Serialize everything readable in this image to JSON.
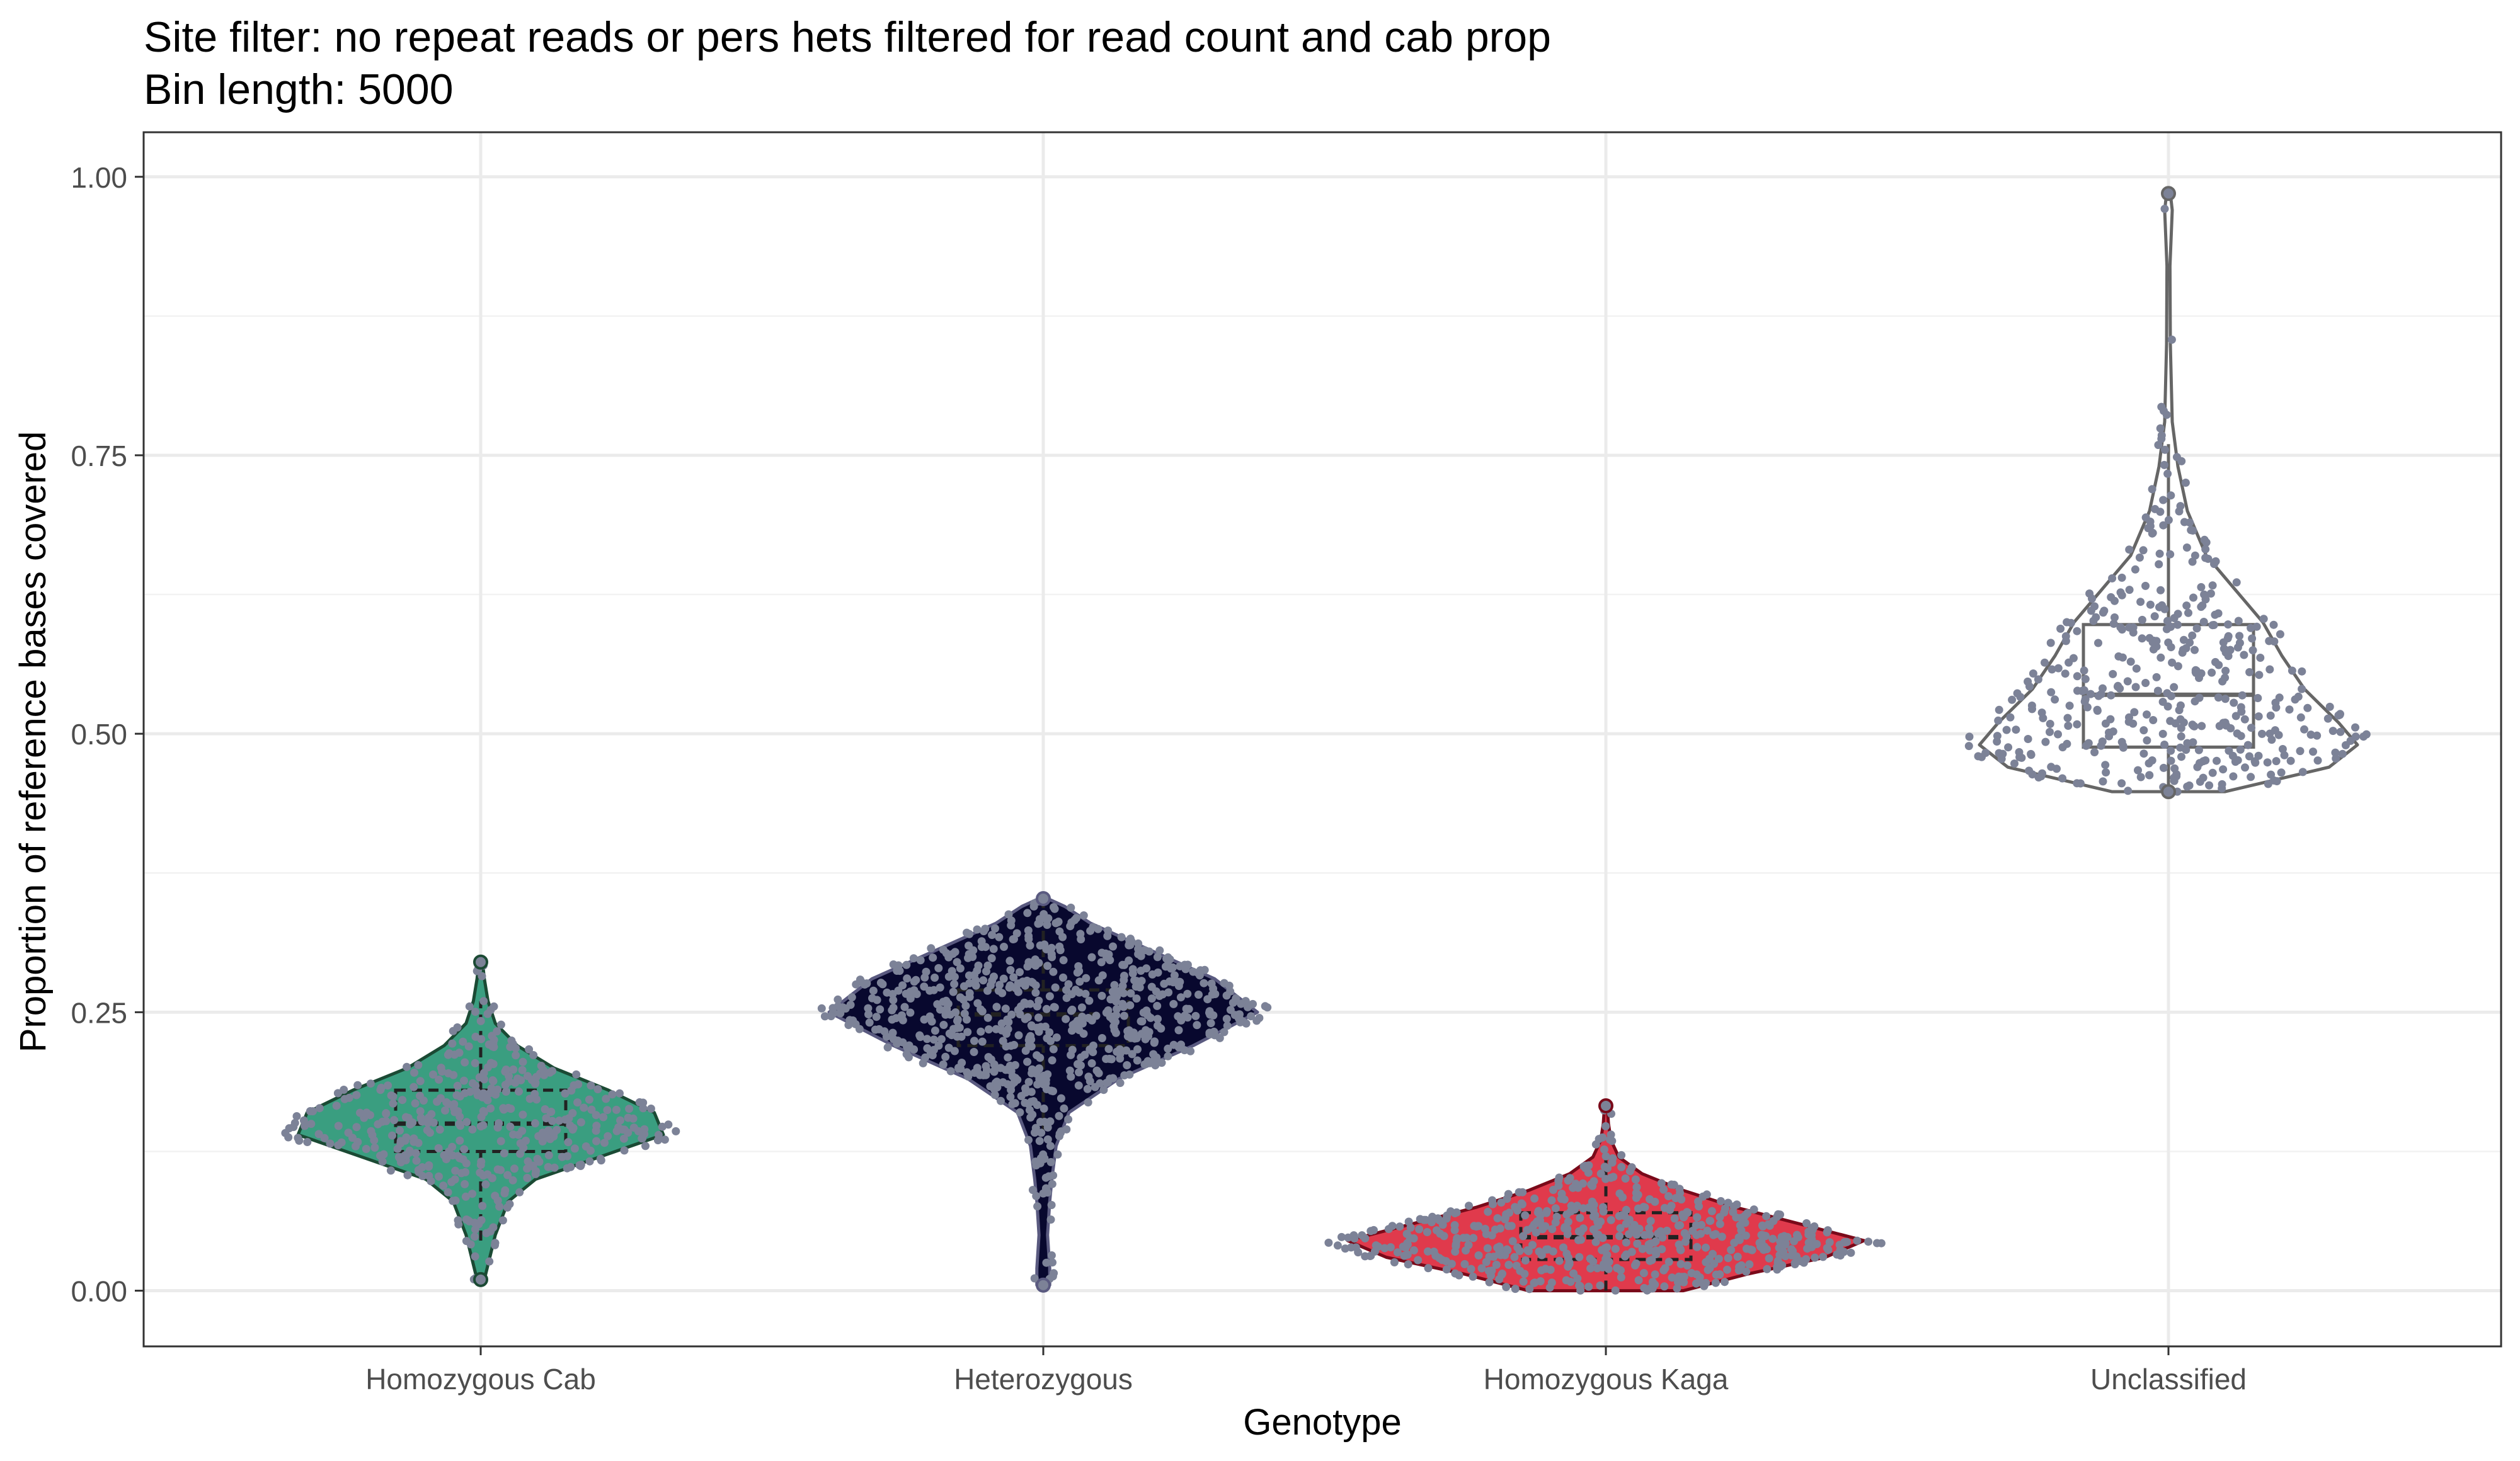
{
  "chart_data": {
    "type": "violin",
    "title": "Site filter: no repeat reads or pers hets filtered for read count and cab prop",
    "subtitle": "Bin length: 5000",
    "xlabel": "Genotype",
    "ylabel": "Proportion of reference bases covered",
    "categories": [
      "Homozygous Cab",
      "Heterozygous",
      "Homozygous Kaga",
      "Unclassified"
    ],
    "ylim": [
      -0.05,
      1.04
    ],
    "yticks": [
      0.0,
      0.25,
      0.5,
      0.75,
      1.0
    ],
    "ytick_labels": [
      "0.00",
      "0.25",
      "0.50",
      "0.75",
      "1.00"
    ],
    "grid": true,
    "legend": "none",
    "point_color": "#7c8297",
    "series": [
      {
        "category": "Homozygous Cab",
        "fill": "#3a9e80",
        "line": "#1b4a34",
        "box_style": "dashed",
        "median": 0.15,
        "q1": 0.125,
        "q3": 0.18,
        "whisker_low": 0.045,
        "whisker_high": 0.26,
        "min": 0.01,
        "max": 0.295,
        "density": [
          [
            0.01,
            0.02
          ],
          [
            0.03,
            0.05
          ],
          [
            0.05,
            0.08
          ],
          [
            0.08,
            0.15
          ],
          [
            0.1,
            0.3
          ],
          [
            0.12,
            0.65
          ],
          [
            0.14,
            1.0
          ],
          [
            0.16,
            0.95
          ],
          [
            0.18,
            0.7
          ],
          [
            0.2,
            0.4
          ],
          [
            0.22,
            0.2
          ],
          [
            0.24,
            0.08
          ],
          [
            0.26,
            0.04
          ],
          [
            0.28,
            0.02
          ],
          [
            0.295,
            0.01
          ]
        ],
        "n_points": 420
      },
      {
        "category": "Heterozygous",
        "fill": "#08082e",
        "line": "#5a5a80",
        "box_style": "dashed",
        "median": 0.248,
        "q1": 0.22,
        "q3": 0.27,
        "whisker_low": 0.14,
        "whisker_high": 0.35,
        "min": 0.005,
        "max": 0.352,
        "density": [
          [
            0.005,
            0.03
          ],
          [
            0.02,
            0.03
          ],
          [
            0.05,
            0.02
          ],
          [
            0.08,
            0.03
          ],
          [
            0.1,
            0.04
          ],
          [
            0.13,
            0.06
          ],
          [
            0.16,
            0.12
          ],
          [
            0.19,
            0.35
          ],
          [
            0.22,
            0.7
          ],
          [
            0.25,
            1.0
          ],
          [
            0.28,
            0.8
          ],
          [
            0.31,
            0.45
          ],
          [
            0.33,
            0.22
          ],
          [
            0.345,
            0.1
          ],
          [
            0.352,
            0.02
          ]
        ],
        "n_points": 720
      },
      {
        "category": "Homozygous Kaga",
        "fill": "#e03a4c",
        "line": "#7a0a1a",
        "box_style": "dashed",
        "median": 0.048,
        "q1": 0.028,
        "q3": 0.07,
        "whisker_low": 0.0,
        "whisker_high": 0.125,
        "min": 0.0,
        "max": 0.166,
        "density": [
          [
            0.0,
            0.3
          ],
          [
            0.015,
            0.55
          ],
          [
            0.03,
            0.85
          ],
          [
            0.045,
            1.0
          ],
          [
            0.06,
            0.75
          ],
          [
            0.075,
            0.5
          ],
          [
            0.09,
            0.3
          ],
          [
            0.105,
            0.14
          ],
          [
            0.12,
            0.05
          ],
          [
            0.135,
            0.02
          ],
          [
            0.15,
            0.01
          ],
          [
            0.166,
            0.005
          ]
        ],
        "n_points": 560
      },
      {
        "category": "Unclassified",
        "fill": "#ffffff",
        "line": "#666666",
        "box_style": "solid",
        "median": 0.535,
        "q1": 0.488,
        "q3": 0.598,
        "whisker_low": 0.448,
        "whisker_high": 0.76,
        "min": 0.448,
        "max": 0.985,
        "density": [
          [
            0.448,
            0.3
          ],
          [
            0.47,
            0.85
          ],
          [
            0.49,
            1.0
          ],
          [
            0.51,
            0.9
          ],
          [
            0.54,
            0.72
          ],
          [
            0.57,
            0.6
          ],
          [
            0.6,
            0.5
          ],
          [
            0.63,
            0.35
          ],
          [
            0.66,
            0.2
          ],
          [
            0.7,
            0.1
          ],
          [
            0.74,
            0.05
          ],
          [
            0.78,
            0.02
          ],
          [
            0.85,
            0.01
          ],
          [
            0.92,
            0.008
          ],
          [
            0.97,
            0.02
          ],
          [
            0.985,
            0.01
          ]
        ],
        "n_points": 430
      }
    ]
  }
}
